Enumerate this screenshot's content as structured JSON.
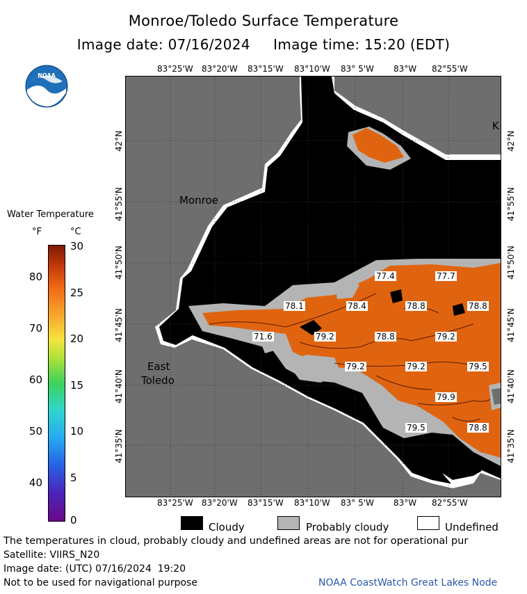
{
  "header": {
    "title": "Monroe/Toledo Surface Temperature",
    "subtitle": "Image date: 07/16/2024     Image time: 15:20 (EDT)"
  },
  "logo": {
    "text": "NOAA",
    "icon": "noaa-logo-icon"
  },
  "map": {
    "lon_labels": [
      "83°25'W",
      "83°20'W",
      "83°15'W",
      "83°10'W",
      "83° 5'W",
      "83°W",
      "82°55'W"
    ],
    "lat_labels": [
      "42°N",
      "41°55'N",
      "41°50'N",
      "41°45'N",
      "41°40'N",
      "41°35'N"
    ],
    "places": {
      "monroe": "Monroe",
      "east_toledo_1": "East",
      "east_toledo_2": "Toledo",
      "edge_k": "K"
    },
    "temperatures": [
      "77.4",
      "77.7",
      "78.1",
      "78.4",
      "78.8",
      "78.8",
      "71.6",
      "79.2",
      "78.8",
      "79.2",
      "79.2",
      "79.2",
      "79.5",
      "79.9",
      "79.5",
      "78.8"
    ],
    "colors": {
      "land": "#6e6e6e",
      "cloud": "#000000",
      "probably_cloudy": "#b4b4b4",
      "undefined": "#ffffff",
      "water_warm": "#e0640f"
    }
  },
  "legend": {
    "title": "Water Temperature",
    "unit_f": "°F",
    "unit_c": "°C",
    "f_ticks": [
      "80",
      "70",
      "60",
      "50",
      "40"
    ],
    "c_ticks": [
      "30",
      "25",
      "20",
      "15",
      "10",
      "5",
      "0"
    ]
  },
  "key": {
    "cloudy": "Cloudy",
    "probably_cloudy": "Probably cloudy",
    "undefined": "Undefined"
  },
  "footer": {
    "note": "The temperatures in cloud, probably cloudy and undefined areas are not for operational pur",
    "satellite": "Satellite: VIIRS_N20",
    "utc": "Image date: (UTC) 07/16/2024  19:20",
    "nav": "Not to be used for navigational purpose",
    "credit": "NOAA CoastWatch Great Lakes Node"
  }
}
